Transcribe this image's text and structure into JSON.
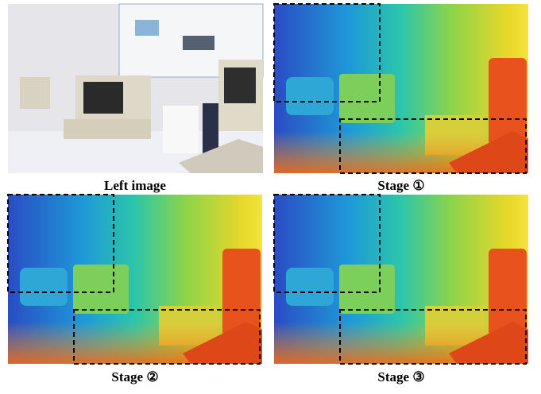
{
  "panels": [
    {
      "caption": "Left image"
    },
    {
      "caption": "Stage ①"
    },
    {
      "caption": "Stage ②"
    },
    {
      "caption": "Stage ③"
    }
  ]
}
